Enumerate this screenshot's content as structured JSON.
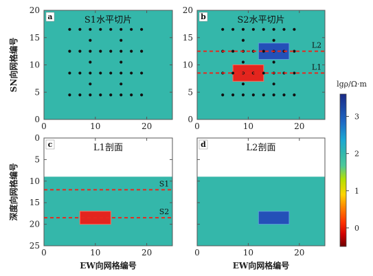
{
  "chart_data": {
    "type": "heatmap",
    "colorbar": {
      "title": "lgρ/Ω·m",
      "range": [
        -0.5,
        3.6
      ],
      "ticks": [
        "0",
        "1",
        "2",
        "3"
      ],
      "colors": [
        "#7a0000",
        "#d40000",
        "#ff3300",
        "#ff9900",
        "#ffdd00",
        "#a0e000",
        "#2fc3a0",
        "#1aa7d0",
        "#1f63c0",
        "#1c2f8a"
      ]
    },
    "colors": {
      "background": "#34b7aa",
      "air": "#ffffff",
      "dot": "#111111",
      "dashed": "#e8281e"
    },
    "panels": [
      {
        "label": "a",
        "title": "S1水平切片",
        "xlim": [
          0,
          25
        ],
        "ylim": [
          0,
          20
        ],
        "xticks": [
          "0",
          "10",
          "20"
        ],
        "yticks": [
          "0",
          "5",
          "10",
          "15",
          "20"
        ],
        "ylabel": "SN向网格编号",
        "xlabel": "",
        "electrode_rows": [
          {
            "y": 16.5,
            "xs": [
              5,
              7,
              9,
              11,
              13,
              15,
              17,
              19
            ]
          },
          {
            "y": 14.5,
            "xs": [
              9,
              15
            ]
          },
          {
            "y": 12.5,
            "xs": [
              5,
              7,
              9,
              11,
              13,
              15,
              17,
              19
            ]
          },
          {
            "y": 10.5,
            "xs": [
              9,
              15
            ]
          },
          {
            "y": 8.5,
            "xs": [
              5,
              7,
              9,
              11,
              13,
              15,
              17,
              19
            ]
          },
          {
            "y": 6.5,
            "xs": [
              9,
              15
            ]
          },
          {
            "y": 4.5,
            "xs": [
              5,
              7,
              9,
              11,
              13,
              15,
              17,
              19
            ]
          }
        ],
        "anomalies": [],
        "lines": []
      },
      {
        "label": "b",
        "title": "S2水平切片",
        "xlim": [
          0,
          25
        ],
        "ylim": [
          0,
          20
        ],
        "xticks": [
          "0",
          "10",
          "20"
        ],
        "yticks": [
          "0",
          "5",
          "10",
          "15",
          "20"
        ],
        "ylabel": "",
        "xlabel": "",
        "electrode_rows": [
          {
            "y": 16.5,
            "xs": [
              5,
              7,
              9,
              11,
              13,
              15,
              17,
              19
            ]
          },
          {
            "y": 14.5,
            "xs": [
              9,
              15
            ]
          },
          {
            "y": 12.5,
            "xs": [
              5,
              7,
              9,
              11,
              13,
              15,
              17,
              19
            ]
          },
          {
            "y": 10.5,
            "xs": [
              9,
              15
            ]
          },
          {
            "y": 8.5,
            "xs": [
              5,
              7,
              9,
              11,
              13,
              15,
              17,
              19
            ]
          },
          {
            "y": 6.5,
            "xs": [
              9,
              15
            ]
          },
          {
            "y": 4.5,
            "xs": [
              5,
              7,
              9,
              11,
              13,
              15,
              17,
              19
            ]
          }
        ],
        "anomalies": [
          {
            "x0": 12,
            "x1": 18,
            "y0": 11,
            "y1": 14,
            "lgrho": 3.4,
            "color": "#2450b8"
          },
          {
            "x0": 7,
            "x1": 13,
            "y0": 7,
            "y1": 10,
            "lgrho": 0,
            "color": "#e3251e"
          }
        ],
        "lines": [
          {
            "y": 12.5,
            "label": "L2"
          },
          {
            "y": 8.5,
            "label": "L1"
          }
        ]
      },
      {
        "label": "c",
        "title": "L1剖面",
        "xlim": [
          0,
          25
        ],
        "ylim": [
          25,
          0
        ],
        "air_depth": 9,
        "xticks": [
          "0",
          "10",
          "20"
        ],
        "yticks": [
          "0",
          "5",
          "10",
          "15",
          "20",
          "25"
        ],
        "ylabel": "深度向网格编号",
        "xlabel": "EW向网格编号",
        "electrode_rows": [],
        "anomalies": [
          {
            "x0": 7,
            "x1": 13,
            "y0": 17,
            "y1": 20,
            "lgrho": 0,
            "color": "#e3251e"
          }
        ],
        "lines": [
          {
            "y": 12,
            "label": "S1"
          },
          {
            "y": 18.5,
            "label": "S2"
          }
        ]
      },
      {
        "label": "d",
        "title": "L2剖面",
        "xlim": [
          0,
          25
        ],
        "ylim": [
          25,
          0
        ],
        "air_depth": 9,
        "xticks": [
          "0",
          "10",
          "20"
        ],
        "yticks": [],
        "ylabel": "",
        "xlabel": "EW向网格编号",
        "electrode_rows": [],
        "anomalies": [
          {
            "x0": 12,
            "x1": 18,
            "y0": 17,
            "y1": 20,
            "lgrho": 3.4,
            "color": "#2450b8"
          }
        ],
        "lines": []
      }
    ]
  }
}
